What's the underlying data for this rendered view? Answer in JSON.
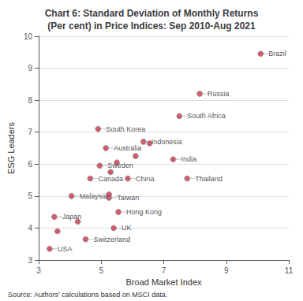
{
  "chart_data": {
    "type": "scatter",
    "title": "Chart 6: Standard Deviation of Monthly Returns\n(Per cent) in Price Indices: Sep 2010-Aug 2021",
    "xlabel": "Broad Market Index",
    "ylabel": "ESG Leaders",
    "annotations": [
      "Source: Authors' calculations based on MSCI data."
    ],
    "color": "#cc3333",
    "grid": true,
    "xlim": [
      3,
      11
    ],
    "xticks": [
      3,
      5,
      7,
      9,
      11
    ],
    "ylim": [
      3,
      10
    ],
    "yticks": [
      3,
      4,
      5,
      6,
      7,
      8,
      9,
      10
    ],
    "labels": [
      "Brazil",
      "Russia",
      "South Africa",
      "Indonesia",
      "India",
      "Thailand",
      "South Korea",
      "Australia",
      "Sweden",
      "Canada",
      "Malaysia",
      "Japan",
      "China",
      "Taiwan",
      "Hong Kong",
      "UK",
      "Switzerland",
      "USA",
      null,
      null,
      null,
      null,
      null,
      null,
      null
    ],
    "x": [
      10.1,
      8.15,
      7.5,
      6.35,
      7.3,
      7.75,
      4.9,
      5.15,
      4.95,
      4.65,
      4.05,
      3.5,
      5.85,
      5.25,
      5.55,
      5.4,
      4.5,
      3.35,
      3.6,
      4.25,
      5.25,
      5.3,
      5.5,
      6.1,
      6.55
    ],
    "values": [
      9.45,
      8.2,
      7.5,
      6.7,
      6.15,
      5.55,
      7.1,
      6.5,
      5.95,
      5.55,
      5.0,
      4.35,
      5.55,
      4.95,
      4.5,
      4.0,
      3.65,
      3.35,
      3.9,
      4.2,
      5.05,
      5.75,
      6.05,
      6.25,
      6.65
    ]
  }
}
